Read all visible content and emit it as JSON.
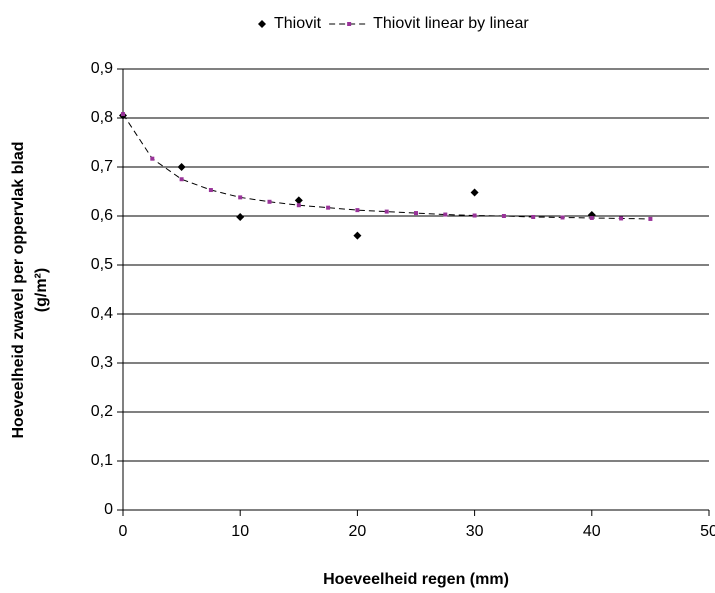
{
  "chart_data": {
    "type": "scatter",
    "xlabel": "Hoeveelheid regen (mm)",
    "ylabel": [
      "Hoeveelheid zwavel per oppervlak blad",
      "(g/m²)"
    ],
    "legend": "top",
    "grid": true,
    "xlim": [
      0,
      50
    ],
    "xticks": [
      0,
      10,
      20,
      30,
      40,
      50
    ],
    "ylim": [
      0,
      0.9
    ],
    "yticks": [
      0,
      {
        "value": 0.1,
        "label": "0,1"
      },
      {
        "value": 0.2,
        "label": "0,2"
      },
      {
        "value": 0.3,
        "label": "0,3"
      },
      {
        "value": 0.4,
        "label": "0,4"
      },
      {
        "value": 0.5,
        "label": "0,5"
      },
      {
        "value": 0.6,
        "label": "0,6"
      },
      {
        "value": 0.7,
        "label": "0,7"
      },
      {
        "value": 0.8,
        "label": "0,8"
      },
      {
        "value": 0.9,
        "label": "0,9"
      }
    ],
    "series": [
      {
        "name": "Thiovit",
        "type": "scatter",
        "color": "#000000",
        "x": [
          0,
          5,
          10,
          15,
          20,
          30,
          40
        ],
        "values": [
          0.805,
          0.7,
          0.598,
          0.632,
          0.56,
          0.648,
          0.602
        ]
      },
      {
        "name": "Thiovit linear by linear",
        "type": "line",
        "color": "#000000",
        "marker_color": "#993399",
        "x": [
          0,
          2.5,
          5,
          7.5,
          10,
          12.5,
          15,
          17.5,
          20,
          22.5,
          25,
          27.5,
          30,
          32.5,
          35,
          37.5,
          40,
          42.5,
          45
        ],
        "values": [
          0.808,
          0.717,
          0.675,
          0.653,
          0.638,
          0.629,
          0.622,
          0.617,
          0.612,
          0.609,
          0.606,
          0.603,
          0.601,
          0.6,
          0.598,
          0.597,
          0.596,
          0.595,
          0.594
        ]
      }
    ]
  }
}
